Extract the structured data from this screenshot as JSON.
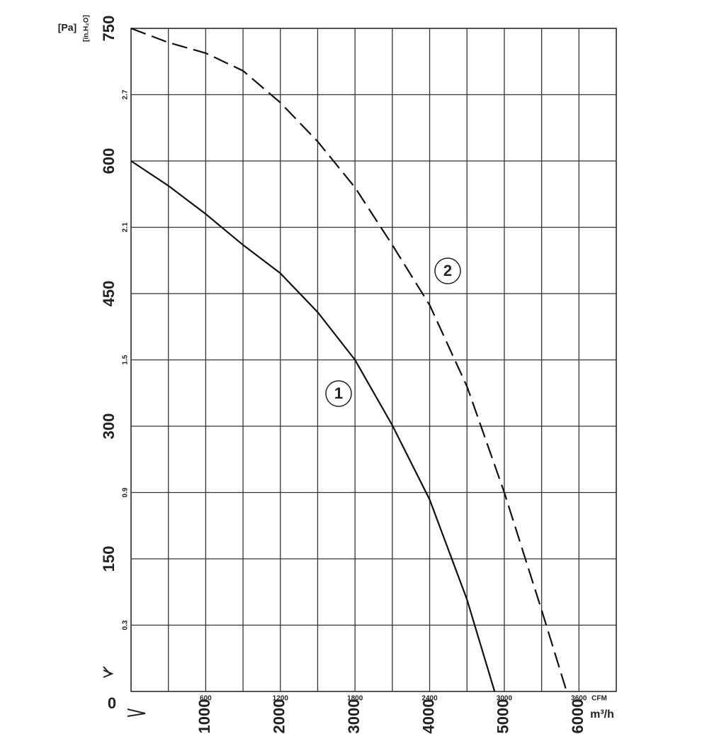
{
  "chart_data": {
    "type": "line",
    "xlabel": "m³/h",
    "ylabel": "[Pa]",
    "x2label": "CFM",
    "y2label": "[in.H₂O]",
    "xlim": [
      0,
      6500
    ],
    "xticks": [
      1000,
      2000,
      3000,
      4000,
      5000,
      6000
    ],
    "xgrid": [
      0,
      500,
      1000,
      1500,
      2000,
      2500,
      3000,
      3500,
      4000,
      4500,
      5000,
      5500,
      6000,
      6500
    ],
    "x2lim": [
      0,
      3900
    ],
    "x2ticks": [
      600,
      1200,
      1800,
      2400,
      3000,
      3600
    ],
    "ylim": [
      0,
      750
    ],
    "yticks": [
      0,
      150,
      300,
      450,
      600,
      750
    ],
    "y2lim": [
      0,
      3.0
    ],
    "y2ticks": [
      0.3,
      0.9,
      1.5,
      2.1,
      2.7
    ],
    "grid": true,
    "series": [
      {
        "name": "1",
        "color": "#111",
        "dash": false,
        "x": [
          0,
          500,
          1000,
          1500,
          2000,
          2500,
          3000,
          3500,
          4000,
          4500,
          4870
        ],
        "values": [
          600,
          572,
          540,
          505,
          473,
          429,
          375,
          301,
          217,
          104,
          0
        ]
      },
      {
        "name": "2",
        "color": "#111",
        "dash": true,
        "x": [
          0,
          500,
          1000,
          1500,
          2000,
          2500,
          3000,
          3500,
          4000,
          4500,
          5000,
          5500,
          5835
        ],
        "values": [
          750,
          734,
          722,
          702,
          666,
          622,
          570,
          505,
          437,
          345,
          225,
          92,
          0
        ]
      }
    ]
  }
}
